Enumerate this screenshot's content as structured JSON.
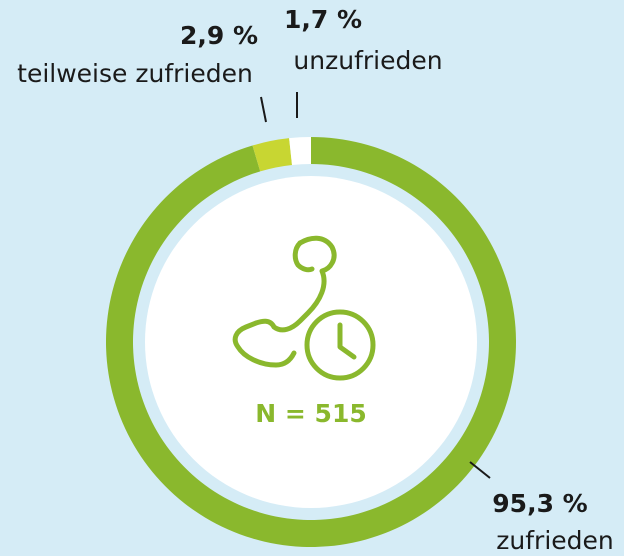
{
  "chart_data": {
    "type": "donut",
    "categories": [
      "zufrieden",
      "teilweise zufrieden",
      "unzufrieden"
    ],
    "values": [
      95.3,
      2.9,
      1.7
    ],
    "value_labels": [
      "95,3 %",
      "2,9 %",
      "1,7 %"
    ],
    "colors": [
      "#8ab82d",
      "#c8d632",
      "#ffffff"
    ],
    "annotation": "N = 515"
  }
}
